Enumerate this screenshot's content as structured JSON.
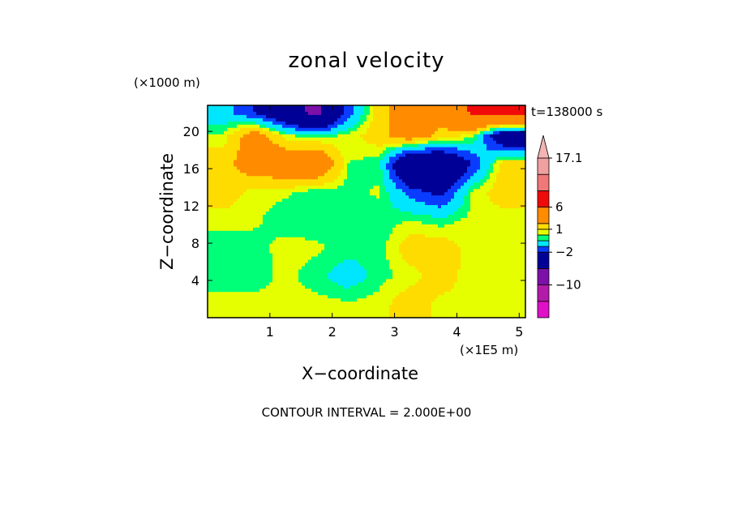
{
  "chart_data": {
    "type": "heatmap",
    "title": "zonal velocity",
    "xlabel": "X−coordinate",
    "ylabel": "Z−coordinate",
    "x_unit": "(×1E5 m)",
    "y_unit": "(×1000 m)",
    "time_label": "t=138000 s",
    "footer": "CONTOUR INTERVAL = 2.000E+00",
    "xlim": [
      0,
      5.1
    ],
    "ylim": [
      0,
      22.8
    ],
    "x_ticks": [
      1,
      2,
      3,
      4,
      5
    ],
    "y_ticks": [
      4,
      8,
      12,
      16,
      20
    ],
    "grid": false,
    "colorbar": {
      "position": "right",
      "labels": [
        {
          "text": "17.1",
          "value": 17.1
        },
        {
          "text": "6",
          "value": 6
        },
        {
          "text": "1",
          "value": 1
        },
        {
          "text": "−2",
          "value": -2
        },
        {
          "text": "−10",
          "value": -10
        }
      ],
      "levels": [
        {
          "min": -20,
          "max": -14,
          "color": "#e010c8"
        },
        {
          "min": -14,
          "max": -10,
          "color": "#b41aa8"
        },
        {
          "min": -10,
          "max": -6,
          "color": "#7c10a8"
        },
        {
          "min": -6,
          "max": -2,
          "color": "#000096"
        },
        {
          "min": -2,
          "max": -1,
          "color": "#0a3cff"
        },
        {
          "min": -1,
          "max": 0,
          "color": "#00e6ff"
        },
        {
          "min": 0,
          "max": 0.5,
          "color": "#00ff78"
        },
        {
          "min": 0.5,
          "max": 1,
          "color": "#e6ff00"
        },
        {
          "min": 1,
          "max": 2,
          "color": "#ffdc00"
        },
        {
          "min": 2,
          "max": 6,
          "color": "#ff8c00"
        },
        {
          "min": 6,
          "max": 10,
          "color": "#f00a0a"
        },
        {
          "min": 10,
          "max": 14,
          "color": "#f07878"
        },
        {
          "min": 14,
          "max": 17.1,
          "color": "#f0a0a0"
        }
      ],
      "overflow_color": "#f4b4b4"
    },
    "value_grid": {
      "x": [
        0.25,
        0.75,
        1.25,
        1.75,
        2.25,
        2.75,
        3.25,
        3.75,
        4.25,
        4.75
      ],
      "y": [
        1.5,
        4.5,
        7.5,
        10.5,
        13.5,
        16.5,
        19.5,
        22.0
      ],
      "z": [
        [
          0.7,
          0.7,
          0.6,
          0.7,
          0.6,
          0.7,
          1.5,
          0.8,
          0.7,
          0.6
        ],
        [
          0.2,
          0.2,
          0.7,
          0.2,
          -0.5,
          0.3,
          0.7,
          1.5,
          0.6,
          0.7
        ],
        [
          0.2,
          0.3,
          0.7,
          0.6,
          0.3,
          0.2,
          1.5,
          1.5,
          0.7,
          0.6
        ],
        [
          0.7,
          0.6,
          0.2,
          0.2,
          0.3,
          0.2,
          0.5,
          0.2,
          0.7,
          0.7
        ],
        [
          1.5,
          0.7,
          0.6,
          0.2,
          0.3,
          0.6,
          -1.5,
          -2.5,
          0.6,
          1.5
        ],
        [
          1.5,
          3.0,
          3.5,
          4.0,
          0.5,
          0.2,
          -5.0,
          -5.0,
          -2.0,
          1.5
        ],
        [
          0.6,
          3.0,
          0.7,
          0.2,
          0.7,
          1.5,
          3.0,
          1.5,
          0.7,
          -4.0
        ],
        [
          -0.5,
          -2.0,
          -4.0,
          -7.0,
          -1.5,
          1.5,
          3.0,
          3.0,
          6.5,
          7.0
        ]
      ]
    }
  }
}
